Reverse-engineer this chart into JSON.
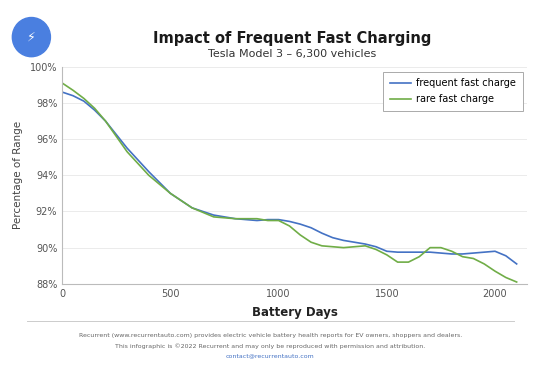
{
  "title": "Impact of Frequent Fast Charging",
  "subtitle": "Tesla Model 3 – 6,300 vehicles",
  "xlabel": "Battery Days",
  "ylabel": "Percentage of Range",
  "ylim": [
    88,
    100
  ],
  "xlim": [
    0,
    2150
  ],
  "yticks": [
    88,
    90,
    92,
    94,
    96,
    98,
    100
  ],
  "xticks": [
    0,
    500,
    1000,
    1500,
    2000
  ],
  "line1_color": "#4472C4",
  "line2_color": "#70AD47",
  "line1_label": "frequent fast charge",
  "line2_label": "rare fast charge",
  "footer_line1": "Recurrent (www.recurrentauto.com) provides electric vehicle battery health reports for EV owners, shoppers and dealers.",
  "footer_line2": "This infographic is ©2022 Recurrent and may only be reproduced with permission and attribution.",
  "footer_line3": "contact@recurrentauto.com",
  "bg_color": "#ffffff",
  "icon_color": "#4a7fe0",
  "frequent_x": [
    0,
    50,
    100,
    150,
    200,
    300,
    400,
    500,
    600,
    700,
    750,
    800,
    850,
    900,
    950,
    1000,
    1050,
    1100,
    1150,
    1200,
    1250,
    1300,
    1350,
    1400,
    1450,
    1500,
    1550,
    1600,
    1650,
    1700,
    1750,
    1800,
    1850,
    1900,
    1950,
    2000,
    2050,
    2100
  ],
  "frequent_y": [
    98.6,
    98.4,
    98.1,
    97.6,
    97.0,
    95.5,
    94.2,
    93.0,
    92.2,
    91.8,
    91.7,
    91.6,
    91.55,
    91.5,
    91.55,
    91.55,
    91.45,
    91.3,
    91.1,
    90.8,
    90.55,
    90.4,
    90.3,
    90.2,
    90.05,
    89.8,
    89.75,
    89.75,
    89.75,
    89.75,
    89.7,
    89.65,
    89.65,
    89.7,
    89.75,
    89.8,
    89.55,
    89.1
  ],
  "rare_x": [
    0,
    50,
    100,
    150,
    200,
    300,
    400,
    500,
    600,
    700,
    750,
    800,
    850,
    900,
    950,
    1000,
    1050,
    1100,
    1150,
    1200,
    1250,
    1300,
    1350,
    1400,
    1450,
    1500,
    1550,
    1600,
    1650,
    1700,
    1750,
    1800,
    1850,
    1900,
    1950,
    2000,
    2050,
    2100
  ],
  "rare_y": [
    99.1,
    98.7,
    98.25,
    97.7,
    97.0,
    95.3,
    94.0,
    93.0,
    92.2,
    91.7,
    91.65,
    91.6,
    91.6,
    91.6,
    91.5,
    91.5,
    91.2,
    90.7,
    90.3,
    90.1,
    90.05,
    90.0,
    90.05,
    90.1,
    89.9,
    89.6,
    89.2,
    89.2,
    89.5,
    90.0,
    90.0,
    89.8,
    89.5,
    89.4,
    89.1,
    88.7,
    88.35,
    88.1
  ]
}
